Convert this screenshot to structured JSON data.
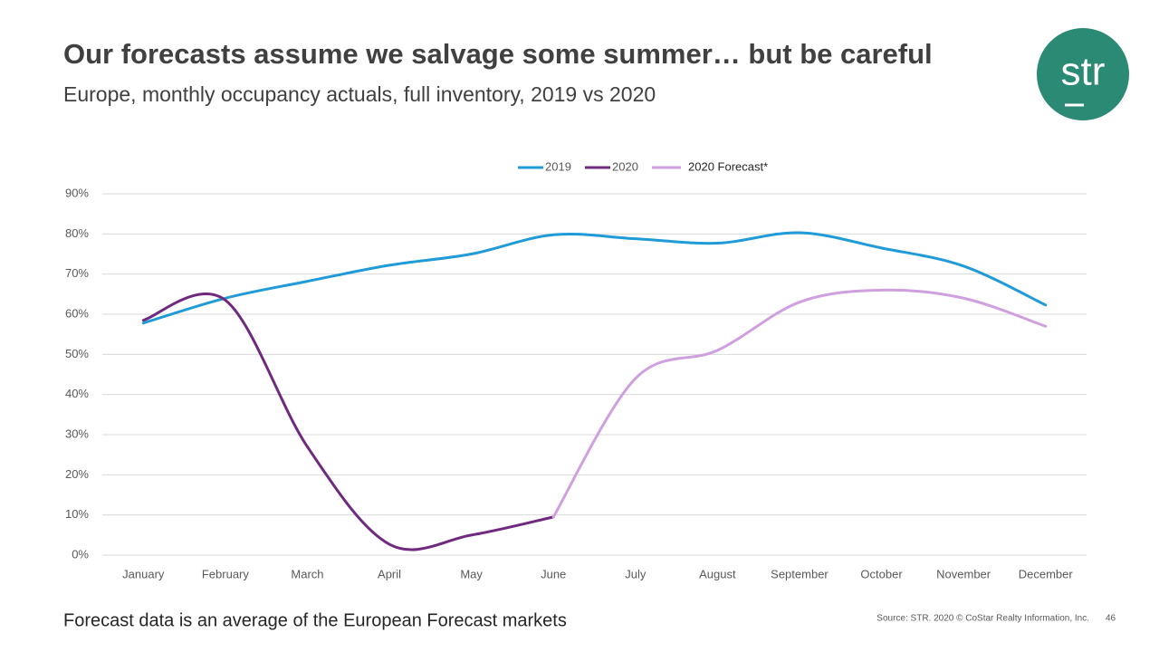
{
  "chart_data": {
    "type": "line",
    "title": "Our forecasts assume we salvage some summer… but be careful",
    "subtitle": "Europe, monthly occupancy actuals, full inventory, 2019 vs 2020",
    "logo": "str",
    "note": "Forecast data is an average of the European Forecast markets",
    "source": "Source: STR. 2020 © CoStar Realty Information, Inc.",
    "page_number": "46",
    "categories": [
      "January",
      "February",
      "March",
      "April",
      "May",
      "June",
      "July",
      "August",
      "September",
      "October",
      "November",
      "December"
    ],
    "series": [
      {
        "name": "2019",
        "color": "#1f9bd7",
        "values": [
          57.8,
          64,
          68.2,
          72.2,
          75,
          79.8,
          78.8,
          77.7,
          80.3,
          76.5,
          72,
          62.3
        ]
      },
      {
        "name": "2020",
        "color": "#6f2a7f",
        "values": [
          58.5,
          63.5,
          27,
          2.7,
          5,
          9.5,
          null,
          null,
          null,
          null,
          null,
          null
        ]
      },
      {
        "name": "2020 Forecast*",
        "color": "#cf9fdf",
        "values": [
          null,
          null,
          null,
          null,
          null,
          9.5,
          44,
          51,
          63,
          66,
          64,
          57
        ]
      }
    ],
    "ylim": [
      0,
      90
    ],
    "yticks": [
      {
        "value": 0,
        "label": "0%"
      },
      {
        "value": 10,
        "label": "10%"
      },
      {
        "value": 20,
        "label": "20%"
      },
      {
        "value": 30,
        "label": "30%"
      },
      {
        "value": 40,
        "label": "40%"
      },
      {
        "value": 50,
        "label": "50%"
      },
      {
        "value": 60,
        "label": "60%"
      },
      {
        "value": 70,
        "label": "70%"
      },
      {
        "value": 80,
        "label": "80%"
      },
      {
        "value": 90,
        "label": "90%"
      }
    ],
    "grid": true,
    "legend": "top"
  }
}
